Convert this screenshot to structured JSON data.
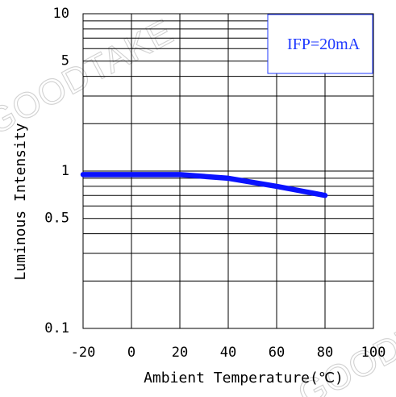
{
  "watermark": {
    "text": "GOODTAKE"
  },
  "legend": {
    "label": "IFP=20mA"
  },
  "chart_data": {
    "type": "line",
    "title": "",
    "xlabel": "Ambient Temperature(℃)",
    "ylabel": "Luminous Intensity",
    "xlim": [
      -20,
      100
    ],
    "ylim": [
      0.1,
      10
    ],
    "y_scale": "log",
    "x_ticks": [
      -20,
      0,
      20,
      40,
      60,
      80,
      100
    ],
    "x_tick_labels": [
      "-20",
      "0",
      "20",
      "40",
      "60",
      "80",
      "100"
    ],
    "y_ticks": [
      0.1,
      0.5,
      1,
      5,
      10
    ],
    "y_tick_labels": [
      "0.1",
      "0.5",
      "1",
      "5",
      "10"
    ],
    "grid": true,
    "legend_position": "top-right",
    "series": [
      {
        "name": "IFP=20mA",
        "color": "#0a12ff",
        "x": [
          -20,
          0,
          20,
          40,
          60,
          80
        ],
        "y": [
          0.95,
          0.95,
          0.95,
          0.9,
          0.8,
          0.7
        ]
      }
    ]
  }
}
